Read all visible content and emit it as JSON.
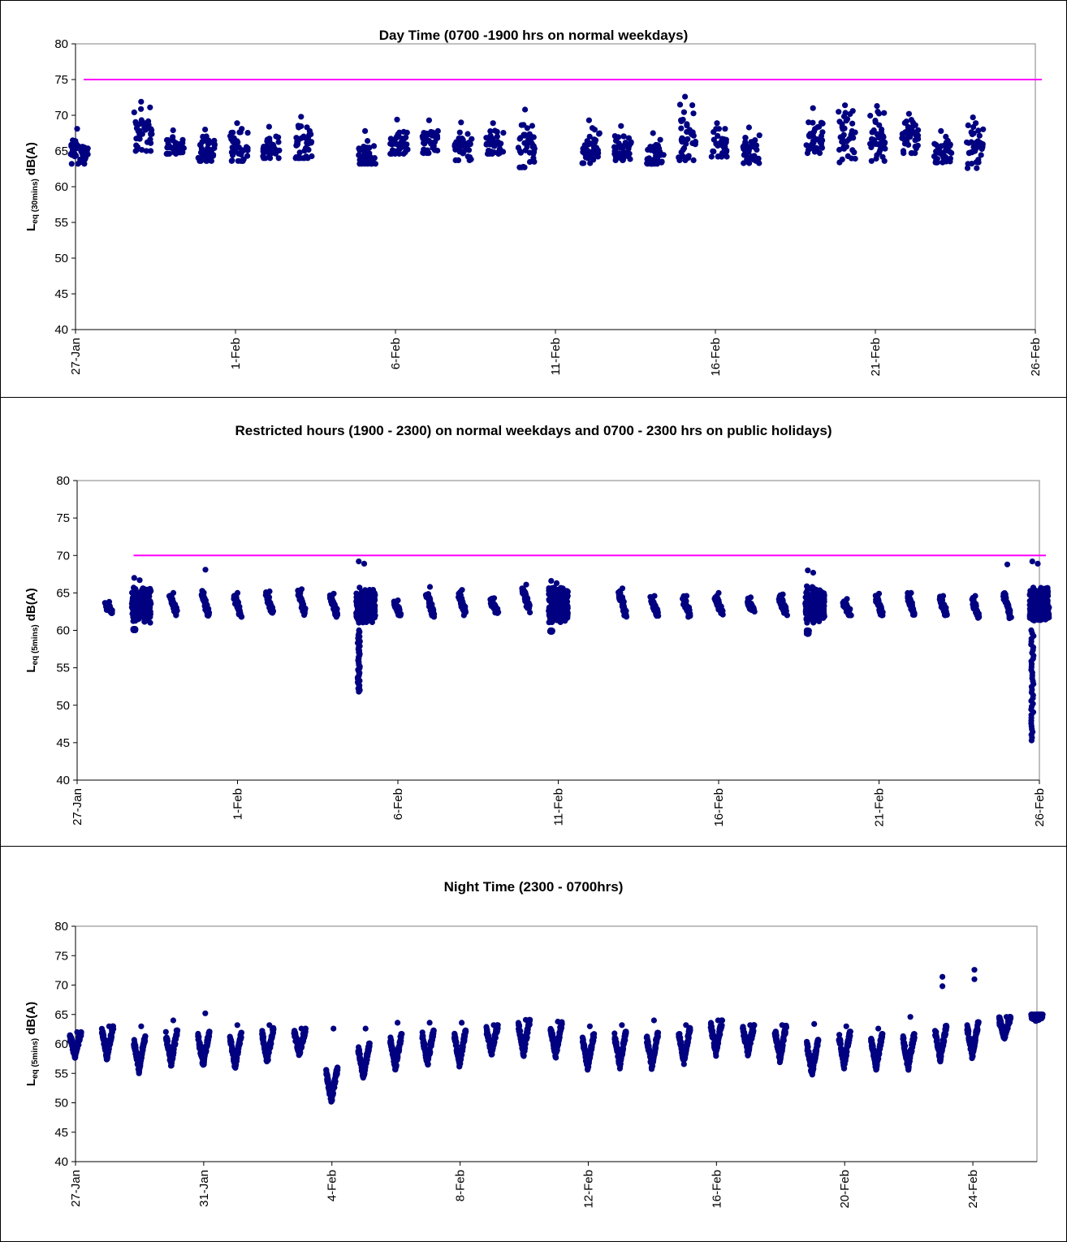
{
  "chart_data": [
    {
      "type": "scatter",
      "title": "Day Time (0700 -1900 hrs on normal weekdays)",
      "ylabel": {
        "main": "L",
        "subscript": "eq (30mins)",
        "suffix": " dB(A)"
      },
      "xlabel": "",
      "x_is_date": true,
      "xlim": [
        "27-Jan",
        "26-Feb"
      ],
      "xticks": [
        "27-Jan",
        "1-Feb",
        "6-Feb",
        "11-Feb",
        "16-Feb",
        "21-Feb",
        "26-Feb"
      ],
      "ylim": [
        40,
        80
      ],
      "yticks": [
        40,
        45,
        50,
        55,
        60,
        65,
        70,
        75,
        80
      ],
      "grid": false,
      "legend": "none",
      "limit_line": {
        "y": 75,
        "x_from": "27-Jan",
        "x_to": "26-Feb",
        "color": "#ff00ff"
      },
      "point_color": "#000080",
      "series": [
        {
          "clusters": [
            {
              "date": "27-Jan",
              "min": 63.2,
              "max": 68.1,
              "peak": 68.1,
              "mode": "day"
            },
            {
              "date": "29-Jan",
              "min": 65.0,
              "max": 71.9,
              "peak": 71.9,
              "mode": "day"
            },
            {
              "date": "30-Jan",
              "min": 64.6,
              "max": 67.9,
              "peak": 67.9,
              "mode": "day"
            },
            {
              "date": "31-Jan",
              "min": 63.6,
              "max": 68.0,
              "peak": 68.0,
              "mode": "day"
            },
            {
              "date": "1-Feb",
              "min": 63.6,
              "max": 68.9,
              "peak": 68.9,
              "mode": "day"
            },
            {
              "date": "2-Feb",
              "min": 64.0,
              "max": 68.4,
              "peak": 68.4,
              "mode": "day"
            },
            {
              "date": "3-Feb",
              "min": 64.0,
              "max": 69.8,
              "peak": 69.8,
              "mode": "day"
            },
            {
              "date": "5-Feb",
              "min": 63.2,
              "max": 67.8,
              "peak": 67.8,
              "mode": "day"
            },
            {
              "date": "6-Feb",
              "min": 64.6,
              "max": 69.4,
              "peak": 69.4,
              "mode": "day"
            },
            {
              "date": "7-Feb",
              "min": 64.7,
              "max": 69.3,
              "peak": 69.3,
              "mode": "day"
            },
            {
              "date": "8-Feb",
              "min": 63.7,
              "max": 69.0,
              "peak": 69.0,
              "mode": "day"
            },
            {
              "date": "9-Feb",
              "min": 64.6,
              "max": 68.9,
              "peak": 68.9,
              "mode": "day"
            },
            {
              "date": "10-Feb",
              "min": 62.7,
              "max": 70.8,
              "peak": 70.8,
              "mode": "day"
            },
            {
              "date": "12-Feb",
              "min": 63.3,
              "max": 69.3,
              "peak": 69.3,
              "mode": "day"
            },
            {
              "date": "13-Feb",
              "min": 63.7,
              "max": 68.5,
              "peak": 68.5,
              "mode": "day"
            },
            {
              "date": "14-Feb",
              "min": 63.2,
              "max": 67.5,
              "peak": 67.5,
              "mode": "day"
            },
            {
              "date": "15-Feb",
              "min": 63.7,
              "max": 72.6,
              "peak": 72.6,
              "mode": "day"
            },
            {
              "date": "16-Feb",
              "min": 64.2,
              "max": 68.9,
              "peak": 68.9,
              "mode": "day"
            },
            {
              "date": "17-Feb",
              "min": 63.3,
              "max": 68.3,
              "peak": 68.3,
              "mode": "day"
            },
            {
              "date": "19-Feb",
              "min": 64.7,
              "max": 71.0,
              "peak": 71.0,
              "mode": "day"
            },
            {
              "date": "20-Feb",
              "min": 63.4,
              "max": 71.4,
              "peak": 71.4,
              "mode": "day"
            },
            {
              "date": "21-Feb",
              "min": 63.6,
              "max": 71.3,
              "peak": 71.3,
              "mode": "day"
            },
            {
              "date": "22-Feb",
              "min": 64.7,
              "max": 70.2,
              "peak": 70.2,
              "mode": "day"
            },
            {
              "date": "23-Feb",
              "min": 63.4,
              "max": 67.8,
              "peak": 67.8,
              "mode": "day"
            },
            {
              "date": "24-Feb",
              "min": 62.6,
              "max": 69.7,
              "peak": 69.7,
              "mode": "day"
            }
          ]
        }
      ]
    },
    {
      "type": "scatter",
      "title": "Restricted hours (1900 - 2300) on normal weekdays and 0700 - 2300 hrs on public holidays)",
      "ylabel": {
        "main": "L",
        "subscript": "eq (5mins)",
        "suffix": " dB(A)"
      },
      "xlabel": "",
      "x_is_date": true,
      "xlim": [
        "27-Jan",
        "26-Feb"
      ],
      "xticks": [
        "27-Jan",
        "1-Feb",
        "6-Feb",
        "11-Feb",
        "16-Feb",
        "21-Feb",
        "26-Feb"
      ],
      "ylim": [
        40,
        80
      ],
      "yticks": [
        40,
        45,
        50,
        55,
        60,
        65,
        70,
        75,
        80
      ],
      "grid": false,
      "legend": "none",
      "limit_line": {
        "y": 70,
        "x_from": "28-Jan",
        "x_to": "26-Feb",
        "color": "#ff00ff"
      },
      "point_color": "#000080",
      "series": [
        {
          "clusters": [
            {
              "date": "28-Jan",
              "min": 62.3,
              "max": 63.8,
              "peak": 63.8,
              "mode": "evening"
            },
            {
              "date": "29-Jan",
              "min": 60.2,
              "max": 67.0,
              "peak": 67.0,
              "mode": "holiday"
            },
            {
              "date": "30-Jan",
              "min": 62.0,
              "max": 65.0,
              "peak": 65.0,
              "mode": "evening"
            },
            {
              "date": "31-Jan",
              "min": 61.8,
              "max": 68.1,
              "peak": 68.1,
              "mode": "evening"
            },
            {
              "date": "1-Feb",
              "min": 61.8,
              "max": 65.0,
              "peak": 65.0,
              "mode": "evening"
            },
            {
              "date": "2-Feb",
              "min": 62.0,
              "max": 65.2,
              "peak": 65.2,
              "mode": "evening"
            },
            {
              "date": "3-Feb",
              "min": 62.0,
              "max": 65.5,
              "peak": 65.5,
              "mode": "evening"
            },
            {
              "date": "4-Feb",
              "min": 61.8,
              "max": 64.9,
              "peak": 64.9,
              "mode": "evening"
            },
            {
              "date": "5-Feb",
              "min": 51.8,
              "max": 69.2,
              "peak": 69.2,
              "mode": "holiday"
            },
            {
              "date": "6-Feb",
              "min": 61.8,
              "max": 64.0,
              "peak": 64.0,
              "mode": "evening"
            },
            {
              "date": "7-Feb",
              "min": 61.8,
              "max": 65.8,
              "peak": 65.8,
              "mode": "evening"
            },
            {
              "date": "8-Feb",
              "min": 62.0,
              "max": 65.4,
              "peak": 65.4,
              "mode": "evening"
            },
            {
              "date": "9-Feb",
              "min": 62.3,
              "max": 64.3,
              "peak": 64.3,
              "mode": "evening"
            },
            {
              "date": "10-Feb",
              "min": 62.3,
              "max": 66.1,
              "peak": 66.1,
              "mode": "evening"
            },
            {
              "date": "11-Feb",
              "min": 59.8,
              "max": 66.6,
              "peak": 66.6,
              "mode": "holiday"
            },
            {
              "date": "13-Feb",
              "min": 61.8,
              "max": 65.6,
              "peak": 65.6,
              "mode": "evening"
            },
            {
              "date": "14-Feb",
              "min": 61.8,
              "max": 64.6,
              "peak": 64.6,
              "mode": "evening"
            },
            {
              "date": "15-Feb",
              "min": 61.8,
              "max": 64.6,
              "peak": 64.6,
              "mode": "evening"
            },
            {
              "date": "16-Feb",
              "min": 62.0,
              "max": 65.0,
              "peak": 65.0,
              "mode": "evening"
            },
            {
              "date": "17-Feb",
              "min": 62.3,
              "max": 64.4,
              "peak": 64.4,
              "mode": "evening"
            },
            {
              "date": "18-Feb",
              "min": 62.0,
              "max": 64.8,
              "peak": 64.8,
              "mode": "evening"
            },
            {
              "date": "19-Feb",
              "min": 59.5,
              "max": 68.0,
              "peak": 68.0,
              "mode": "holiday"
            },
            {
              "date": "20-Feb",
              "min": 62.0,
              "max": 64.2,
              "peak": 64.2,
              "mode": "evening"
            },
            {
              "date": "21-Feb",
              "min": 61.8,
              "max": 64.9,
              "peak": 64.9,
              "mode": "evening"
            },
            {
              "date": "22-Feb",
              "min": 61.8,
              "max": 65.0,
              "peak": 65.0,
              "mode": "evening"
            },
            {
              "date": "23-Feb",
              "min": 62.0,
              "max": 64.6,
              "peak": 64.6,
              "mode": "evening"
            },
            {
              "date": "24-Feb",
              "min": 61.6,
              "max": 64.6,
              "peak": 64.6,
              "mode": "evening"
            },
            {
              "date": "25-Feb",
              "min": 61.6,
              "max": 68.8,
              "peak": 68.8,
              "mode": "evening"
            },
            {
              "date": "26-Feb",
              "min": 45.3,
              "max": 69.2,
              "peak": 69.2,
              "mode": "holiday"
            }
          ]
        }
      ]
    },
    {
      "type": "scatter",
      "title": "Night Time (2300 - 0700hrs)",
      "ylabel": {
        "main": "L",
        "subscript": "eq (5mins)",
        "suffix": " dB(A)"
      },
      "xlabel": "",
      "x_is_date": true,
      "xlim": [
        "27-Jan",
        "26-Feb"
      ],
      "xticks": [
        "27-Jan",
        "31-Jan",
        "4-Feb",
        "8-Feb",
        "12-Feb",
        "16-Feb",
        "20-Feb",
        "24-Feb"
      ],
      "ylim": [
        40,
        80
      ],
      "yticks": [
        40,
        45,
        50,
        55,
        60,
        65,
        70,
        75,
        80
      ],
      "grid": false,
      "legend": "none",
      "point_color": "#000080",
      "series": [
        {
          "clusters": [
            {
              "date": "27-Jan",
              "min": 57.2,
              "max": 62.0,
              "peak": 62.0,
              "mode": "night"
            },
            {
              "date": "28-Jan",
              "min": 57.0,
              "max": 63.0,
              "peak": 63.0,
              "mode": "night"
            },
            {
              "date": "29-Jan",
              "min": 54.8,
              "max": 63.0,
              "peak": 63.0,
              "mode": "night"
            },
            {
              "date": "30-Jan",
              "min": 55.8,
              "max": 64.0,
              "peak": 64.0,
              "mode": "night"
            },
            {
              "date": "31-Jan",
              "min": 55.6,
              "max": 65.2,
              "peak": 65.2,
              "mode": "night"
            },
            {
              "date": "1-Feb",
              "min": 55.4,
              "max": 63.2,
              "peak": 63.2,
              "mode": "night"
            },
            {
              "date": "2-Feb",
              "min": 56.2,
              "max": 63.2,
              "peak": 63.2,
              "mode": "night"
            },
            {
              "date": "3-Feb",
              "min": 57.6,
              "max": 62.6,
              "peak": 62.6,
              "mode": "night"
            },
            {
              "date": "4-Feb",
              "min": 49.5,
              "max": 62.6,
              "peak": 62.6,
              "mode": "night"
            },
            {
              "date": "5-Feb",
              "min": 53.6,
              "max": 62.6,
              "peak": 62.6,
              "mode": "night"
            },
            {
              "date": "6-Feb",
              "min": 55.2,
              "max": 63.6,
              "peak": 63.6,
              "mode": "night"
            },
            {
              "date": "7-Feb",
              "min": 55.8,
              "max": 63.6,
              "peak": 63.6,
              "mode": "night"
            },
            {
              "date": "8-Feb",
              "min": 55.8,
              "max": 63.6,
              "peak": 63.6,
              "mode": "night"
            },
            {
              "date": "9-Feb",
              "min": 57.8,
              "max": 63.2,
              "peak": 63.2,
              "mode": "night"
            },
            {
              "date": "10-Feb",
              "min": 57.6,
              "max": 64.1,
              "peak": 64.1,
              "mode": "night"
            },
            {
              "date": "11-Feb",
              "min": 57.2,
              "max": 63.8,
              "peak": 63.8,
              "mode": "night"
            },
            {
              "date": "12-Feb",
              "min": 55.2,
              "max": 63.0,
              "peak": 63.0,
              "mode": "night"
            },
            {
              "date": "13-Feb",
              "min": 55.6,
              "max": 63.2,
              "peak": 63.2,
              "mode": "night"
            },
            {
              "date": "14-Feb",
              "min": 55.4,
              "max": 64.0,
              "peak": 64.0,
              "mode": "night"
            },
            {
              "date": "15-Feb",
              "min": 56.2,
              "max": 63.2,
              "peak": 63.2,
              "mode": "night"
            },
            {
              "date": "16-Feb",
              "min": 57.8,
              "max": 64.0,
              "peak": 64.0,
              "mode": "night"
            },
            {
              "date": "17-Feb",
              "min": 57.8,
              "max": 63.2,
              "peak": 63.2,
              "mode": "night"
            },
            {
              "date": "18-Feb",
              "min": 56.6,
              "max": 63.2,
              "peak": 63.2,
              "mode": "night"
            },
            {
              "date": "19-Feb",
              "min": 54.2,
              "max": 63.4,
              "peak": 63.4,
              "mode": "night"
            },
            {
              "date": "20-Feb",
              "min": 55.6,
              "max": 63.0,
              "peak": 63.0,
              "mode": "night"
            },
            {
              "date": "21-Feb",
              "min": 55.2,
              "max": 62.6,
              "peak": 62.6,
              "mode": "night"
            },
            {
              "date": "22-Feb",
              "min": 55.2,
              "max": 64.6,
              "peak": 64.6,
              "mode": "night"
            },
            {
              "date": "23-Feb",
              "min": 56.6,
              "max": 71.4,
              "peak": 71.4,
              "mode": "night"
            },
            {
              "date": "24-Feb",
              "min": 57.2,
              "max": 72.6,
              "peak": 72.6,
              "mode": "night"
            },
            {
              "date": "25-Feb",
              "min": 60.6,
              "max": 64.6,
              "peak": 64.6,
              "mode": "night"
            },
            {
              "date": "26-Feb",
              "min": 63.8,
              "max": 65.0,
              "peak": 65.0,
              "mode": "night"
            }
          ]
        }
      ]
    }
  ]
}
